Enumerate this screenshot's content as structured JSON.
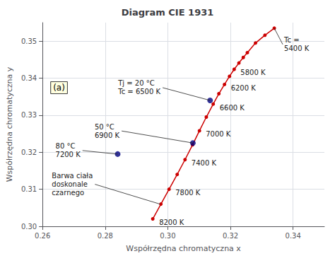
{
  "chart_data": {
    "type": "line",
    "title": "Diagram CIE 1931",
    "xlabel": "Współrzędna chromatyczna x",
    "ylabel": "Współrzędna chromatyczna y",
    "xlim": [
      0.26,
      0.35
    ],
    "ylim": [
      0.3,
      0.355
    ],
    "xticks": [
      0.26,
      0.28,
      {
        "value": 0.3,
        "label": "0.30"
      },
      0.32,
      0.34
    ],
    "yticks": [
      {
        "value": 0.3,
        "label": "0.30"
      },
      0.31,
      0.32,
      0.33,
      0.34,
      0.35
    ],
    "grid": true,
    "series": [
      {
        "type": "line",
        "color": "#cc0000",
        "marker": "circle",
        "x": [
          0.2952,
          0.2978,
          0.3004,
          0.303,
          0.3055,
          0.3079,
          0.3101,
          0.3123,
          0.3145,
          0.3163,
          0.3181,
          0.3197,
          0.3212,
          0.3227,
          0.3241,
          0.3254,
          0.328,
          0.331,
          0.334
        ],
        "values": [
          0.302,
          0.306,
          0.31,
          0.314,
          0.318,
          0.322,
          0.3258,
          0.3295,
          0.333,
          0.3358,
          0.3383,
          0.3405,
          0.3424,
          0.3441,
          0.3456,
          0.3469,
          0.3495,
          0.3516,
          0.3535
        ]
      },
      {
        "type": "scatter",
        "color": "#000080",
        "marker": "circle",
        "x": [
          0.3135,
          0.308,
          0.284
        ],
        "values": [
          0.334,
          0.3225,
          0.3195
        ]
      }
    ],
    "point_labels": [
      {
        "x": 0.2952,
        "y": 0.302,
        "text": "8200 K"
      },
      {
        "x": 0.3004,
        "y": 0.31,
        "text": "7800 K"
      },
      {
        "x": 0.3055,
        "y": 0.318,
        "text": "7400 K"
      },
      {
        "x": 0.3101,
        "y": 0.3258,
        "text": "7000 K"
      },
      {
        "x": 0.3145,
        "y": 0.333,
        "text": "6600 K"
      },
      {
        "x": 0.3181,
        "y": 0.3383,
        "text": "6200 K"
      },
      {
        "x": 0.3212,
        "y": 0.3424,
        "text": "5800 K"
      }
    ],
    "annotations": [
      {
        "text": "Tc =\n5400 K",
        "x": 0.334,
        "y": 0.3535
      },
      {
        "text": "Tj = 20 °C\nTc = 6500 K",
        "x": 0.3135,
        "y": 0.334
      },
      {
        "text": "50 °C\n6900 K",
        "x": 0.308,
        "y": 0.3225
      },
      {
        "text": "80 °C\n7200 K",
        "x": 0.284,
        "y": 0.3195
      },
      {
        "text": "Barwa ciała\ndoskonale\nczarnego",
        "x": 0.2975,
        "y": 0.306
      },
      {
        "text": "(a)"
      }
    ]
  }
}
